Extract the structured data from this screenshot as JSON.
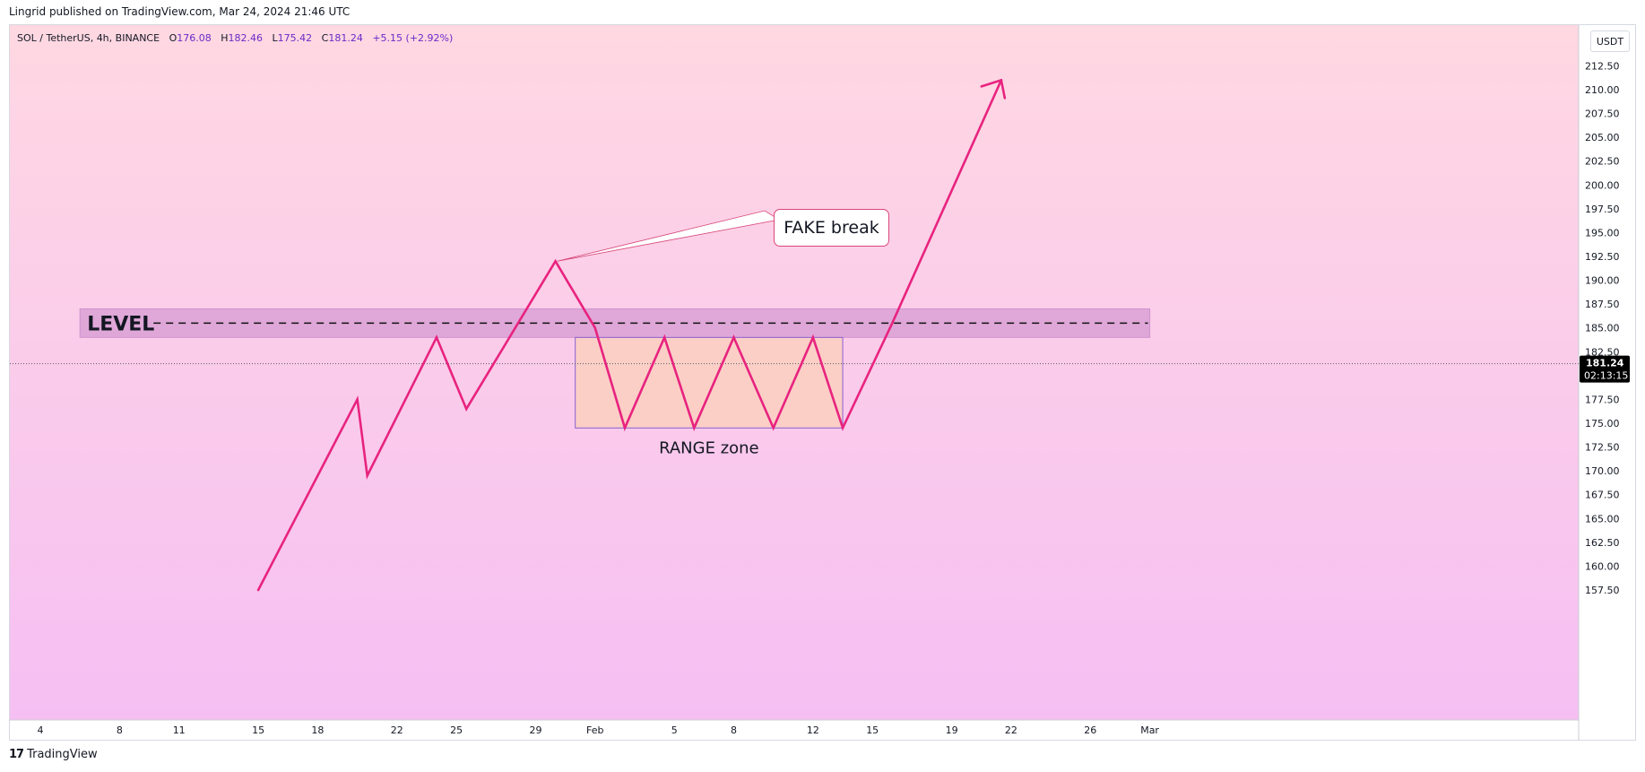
{
  "header": {
    "published": "Lingrid published on TradingView.com, Mar 24, 2024 21:46 UTC"
  },
  "legend": {
    "symbol": "SOL / TetherUS, 4h, BINANCE",
    "o_label": "O",
    "o": "176.08",
    "h_label": "H",
    "h": "182.46",
    "l_label": "L",
    "l": "175.42",
    "c_label": "C",
    "c": "181.24",
    "change": "+5.15 (+2.92%)"
  },
  "currency": "USDT",
  "price_label": {
    "price": "181.24",
    "countdown": "02:13:15"
  },
  "annotations": {
    "level": "LEVEL",
    "range": "RANGE zone",
    "fake": "FAKE break"
  },
  "footer": {
    "brand": "TradingView",
    "mark": "17"
  },
  "colors": {
    "bg_top": "#ffd8e2",
    "bg_bottom": "#f6bff3",
    "path": "#e8237f",
    "level_band": "#dea6d8",
    "range_fill": "#fbcfc6",
    "range_border": "#8a5fcf",
    "price_label_bg": "#000000"
  },
  "chart_data": {
    "type": "line",
    "title": "",
    "ylim": [
      155.0,
      215.0
    ],
    "y_ticks": [
      157.5,
      160.0,
      162.5,
      165.0,
      167.5,
      170.0,
      172.5,
      175.0,
      177.5,
      180.0,
      182.5,
      185.0,
      187.5,
      190.0,
      192.5,
      195.0,
      197.5,
      200.0,
      202.5,
      205.0,
      207.5,
      210.0,
      212.5
    ],
    "x_ticks": [
      "4",
      "8",
      "11",
      "15",
      "18",
      "22",
      "25",
      "29",
      "Feb",
      "5",
      "8",
      "12",
      "15",
      "19",
      "22",
      "26",
      "Mar"
    ],
    "x_axis_days": [
      4,
      8,
      11,
      15,
      18,
      22,
      25,
      29,
      32,
      36,
      39,
      43,
      46,
      50,
      53,
      57,
      60
    ],
    "series": [
      {
        "x": [
          15,
          20,
          20.5,
          24,
          25.5,
          30,
          32,
          33.5,
          35.5,
          37,
          39,
          41,
          43,
          44.5,
          47,
          52.5
        ],
        "y": [
          157.5,
          177.5,
          169.5,
          184.0,
          176.5,
          192.0,
          185.0,
          174.5,
          184.0,
          174.5,
          184.0,
          174.5,
          184.0,
          174.5,
          185.5,
          211.0
        ]
      }
    ],
    "current_price": 181.24,
    "level": {
      "y": 185.5,
      "y_band": [
        184.0,
        187.0
      ],
      "x_range": [
        6,
        60
      ]
    },
    "range_zone": {
      "x_range": [
        31,
        44.5
      ],
      "y_range": [
        174.5,
        184.0
      ]
    },
    "fake_break": {
      "x": 30,
      "y": 192.0
    },
    "arrow_end": {
      "x": 52.5,
      "y": 211.0
    }
  }
}
